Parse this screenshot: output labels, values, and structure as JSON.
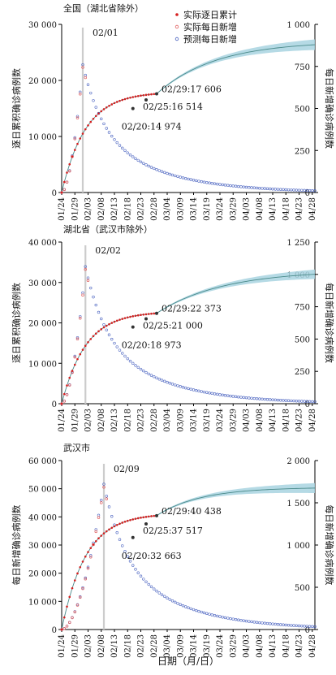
{
  "figure": {
    "xlabel": "日期（月/日）"
  },
  "legend": {
    "entries": [
      "实际逐日累计",
      "实际每日新增",
      "预测每日新增"
    ]
  },
  "colors": {
    "actual_cumulative": "#d62020",
    "actual_daily": "#e06060",
    "pred_daily": "#4a63c0",
    "fit_line": "#4a8a8a",
    "band": "#a8d4e0",
    "vline": "#cccccc"
  },
  "chart_data": [
    {
      "type": "scatter",
      "title": "全国（湖北省除外）",
      "ylabel_left": "逐日累积确诊病例数",
      "ylabel_right": "每日新增确诊病例数",
      "x_ticks": [
        "01/24",
        "01/29",
        "02/03",
        "02/08",
        "02/13",
        "02/18",
        "02/23",
        "02/28",
        "03/04",
        "03/09",
        "03/14",
        "03/19",
        "03/24",
        "03/29",
        "04/03",
        "04/08",
        "04/13",
        "04/18",
        "04/23",
        "04/28"
      ],
      "yleft_ticks": [
        "0",
        "10 000",
        "20 000",
        "30 000"
      ],
      "yleft_range": [
        0,
        30000
      ],
      "yright_ticks": [
        "0",
        "250",
        "500",
        "750",
        "1 000"
      ],
      "yright_range": [
        0,
        1000
      ],
      "peak_label": "02/01",
      "peak_day": 8,
      "peak_daily": 760,
      "cum_final": 27000,
      "cum_rate": 0.045,
      "actual_cum_last_day": 36,
      "annotations": [
        "02/29:17 606",
        "02/25:16 514",
        "02/20:14 974"
      ],
      "annotated_points": [
        {
          "day": 36,
          "value": 17606
        },
        {
          "day": 32,
          "value": 16514
        },
        {
          "day": 27,
          "value": 14974
        }
      ]
    },
    {
      "type": "scatter",
      "title": "湖北省（武汉市除外）",
      "ylabel_left": "逐日累积确诊病例数",
      "ylabel_right": "每日新增确诊病例数",
      "x_ticks": [
        "01/24",
        "01/29",
        "02/03",
        "02/08",
        "02/13",
        "02/18",
        "02/23",
        "02/28",
        "03/04",
        "03/09",
        "03/14",
        "03/19",
        "03/24",
        "03/29",
        "04/03",
        "04/08",
        "04/13",
        "04/18",
        "04/23",
        "04/28"
      ],
      "yleft_ticks": [
        "0",
        "10 000",
        "20 000",
        "30 000",
        "40 000"
      ],
      "yleft_range": [
        0,
        40000
      ],
      "yright_ticks": [
        "0",
        "250",
        "500",
        "750",
        "1 000",
        "1 250"
      ],
      "yright_range": [
        0,
        1250
      ],
      "peak_label": "02/02",
      "peak_day": 9,
      "peak_daily": 1060,
      "cum_final": 33000,
      "cum_rate": 0.04,
      "actual_cum_last_day": 36,
      "annotations": [
        "02/29:22 373",
        "02/25:21 000",
        "02/20:18 973"
      ],
      "annotated_points": [
        {
          "day": 36,
          "value": 22373
        },
        {
          "day": 32,
          "value": 21000
        },
        {
          "day": 27,
          "value": 18973
        }
      ]
    },
    {
      "type": "scatter",
      "title": "武汉市",
      "ylabel_left": "每日新增确诊病例数",
      "ylabel_right": "每日新增确诊病例数",
      "x_ticks": [
        "01/24",
        "01/29",
        "02/03",
        "02/08",
        "02/13",
        "02/18",
        "02/23",
        "02/28",
        "03/04",
        "03/09",
        "03/14",
        "03/19",
        "03/24",
        "03/29",
        "04/03",
        "04/08",
        "04/13",
        "04/18",
        "04/23",
        "04/28"
      ],
      "yleft_ticks": [
        "0",
        "10 000",
        "20 000",
        "30 000",
        "40 000",
        "50 000",
        "60 000"
      ],
      "yleft_range": [
        0,
        60000
      ],
      "yright_ticks": [
        "0",
        "500",
        "1 000",
        "1 500",
        "2 000"
      ],
      "yright_range": [
        0,
        2000
      ],
      "peak_label": "02/09",
      "peak_day": 16,
      "peak_daily": 1720,
      "cum_final": 50500,
      "cum_rate": 0.06,
      "actual_cum_last_day": 36,
      "annotations": [
        "02/29:40 438",
        "02/25:37 517",
        "02/20:32 663"
      ],
      "annotated_points": [
        {
          "day": 36,
          "value": 40438
        },
        {
          "day": 32,
          "value": 37517
        },
        {
          "day": 27,
          "value": 32663
        }
      ]
    }
  ]
}
